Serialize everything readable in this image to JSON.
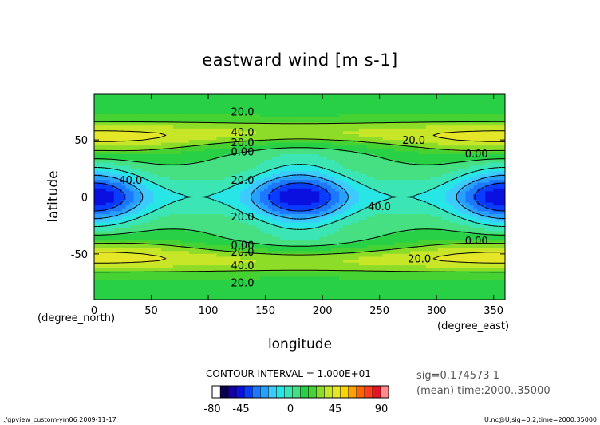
{
  "chart_data": {
    "type": "heatmap",
    "title": "eastward wind [m s-1]",
    "xlabel": "longitude",
    "ylabel": "latitude",
    "x_unit": "(degree_east)",
    "y_unit": "(degree_north)",
    "xlim": [
      0,
      360
    ],
    "ylim": [
      -90,
      90
    ],
    "x_ticks": [
      0,
      50,
      100,
      150,
      200,
      250,
      300,
      350
    ],
    "y_ticks": [
      -50,
      0,
      50
    ],
    "contour_labels": [
      {
        "text": "20.0",
        "lon": 130,
        "lat": 75
      },
      {
        "text": "40.0",
        "lon": 130,
        "lat": 57
      },
      {
        "text": "20.0",
        "lon": 130,
        "lat": 48
      },
      {
        "text": "0.00",
        "lon": 130,
        "lat": 40
      },
      {
        "text": "20.0",
        "lon": 280,
        "lat": 50
      },
      {
        "text": "0.00",
        "lon": 335,
        "lat": 38
      },
      {
        "text": "40.0",
        "lon": 32,
        "lat": 15
      },
      {
        "text": "20.0",
        "lon": 130,
        "lat": 15
      },
      {
        "text": "40.0",
        "lon": 250,
        "lat": -8
      },
      {
        "text": "20.0",
        "lon": 130,
        "lat": -17
      },
      {
        "text": "0.00",
        "lon": 335,
        "lat": -38
      },
      {
        "text": "0.00",
        "lon": 130,
        "lat": -42
      },
      {
        "text": "20.0",
        "lon": 130,
        "lat": -48
      },
      {
        "text": "20.0",
        "lon": 285,
        "lat": -54
      },
      {
        "text": "40.0",
        "lon": 130,
        "lat": -60
      },
      {
        "text": "20.0",
        "lon": 130,
        "lat": -75
      }
    ],
    "colorbar": {
      "tick_labels": [
        "-80",
        "-45",
        "0",
        "45",
        "90"
      ],
      "colors": [
        "#ffffff",
        "#0a0050",
        "#1400a0",
        "#0a10e0",
        "#0a3cff",
        "#1e78ff",
        "#28a0ff",
        "#3ccaff",
        "#28e6e6",
        "#3ce6b4",
        "#46e082",
        "#28d046",
        "#46d232",
        "#8cdc28",
        "#c8e628",
        "#e6e628",
        "#ffd200",
        "#ffa000",
        "#ff6400",
        "#ff3c1e",
        "#e61428",
        "#ff8c8c"
      ],
      "interval_label": "CONTOUR INTERVAL = 1.000E+01"
    }
  },
  "info": {
    "line1": "sig=0.174573 1",
    "line2": "(mean) time:2000..35000"
  },
  "footer": {
    "left": "./gpview_custom-ym06  2009-11-17",
    "right": "U.nc@U,sig=0.2,time=2000:35000"
  }
}
